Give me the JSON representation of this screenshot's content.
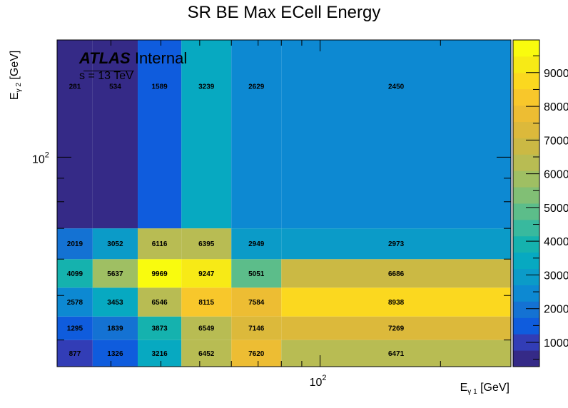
{
  "chart_data": {
    "type": "heatmap",
    "title": "SR BE Max ECell Energy",
    "label_atlas": "ATLAS",
    "label_internal": "Internal",
    "label_energy": "s = 13 TeV",
    "xlabel_main": "E",
    "xlabel_sub": "γ 1",
    "xlabel_unit": "[GeV]",
    "ylabel_main": "E",
    "ylabel_sub": "γ 2",
    "ylabel_unit": "[GeV]",
    "x_scale": "log",
    "y_scale": "log",
    "xlim": [
      22,
      300
    ],
    "ylim": [
      35,
      180
    ],
    "x_edges": [
      22,
      27,
      35,
      45,
      60,
      80,
      300
    ],
    "y_edges": [
      35,
      40,
      45,
      52,
      60,
      70,
      180
    ],
    "x_major_ticks": [
      100
    ],
    "y_major_ticks": [
      100
    ],
    "x_tick_labels": [
      "10",
      "2"
    ],
    "y_tick_labels": [
      "10",
      "2"
    ],
    "values": [
      [
        877,
        1326,
        3216,
        6452,
        7620,
        6471
      ],
      [
        1295,
        1839,
        3873,
        6549,
        7146,
        7269
      ],
      [
        2578,
        3453,
        6546,
        8115,
        7584,
        8938
      ],
      [
        4099,
        5637,
        9969,
        9247,
        5051,
        6686
      ],
      [
        2019,
        3052,
        6116,
        6395,
        2949,
        2973
      ],
      [
        281,
        534,
        1589,
        3239,
        2629,
        2450
      ]
    ],
    "cell_labels": [
      [
        "877",
        "1326",
        "3216",
        "6452",
        "7620",
        "6471"
      ],
      [
        "1295",
        "1839",
        "3873",
        "6549",
        "7146",
        "7269"
      ],
      [
        "2578",
        "3453",
        "6546",
        "8115",
        "7584",
        "8938"
      ],
      [
        "4099",
        "5637",
        "9969",
        "9247",
        "5051",
        "6686"
      ],
      [
        "2019",
        "3052",
        "6116",
        "6395",
        "2949",
        "2973"
      ],
      [
        "281",
        "534",
        "1589",
        "3239",
        "2629",
        "2450"
      ]
    ],
    "z_range": [
      281,
      9969
    ],
    "colorbar_ticks": [
      1000,
      2000,
      3000,
      4000,
      5000,
      6000,
      7000,
      8000,
      9000
    ],
    "colorbar_labels": [
      "1000",
      "2000",
      "3000",
      "4000",
      "5000",
      "6000",
      "7000",
      "8000",
      "9000"
    ],
    "palette": [
      "#352a87",
      "#323db6",
      "#0f5cdd",
      "#1472d3",
      "#0d89d2",
      "#0b9bc8",
      "#07a9c1",
      "#15b2ae",
      "#38b99e",
      "#5cbd8a",
      "#81bf75",
      "#9fbf63",
      "#b8bc53",
      "#cbb944",
      "#dcb93b",
      "#edbd33",
      "#f8c72b",
      "#fbd81f",
      "#f7ea16",
      "#f9fb0e"
    ]
  }
}
